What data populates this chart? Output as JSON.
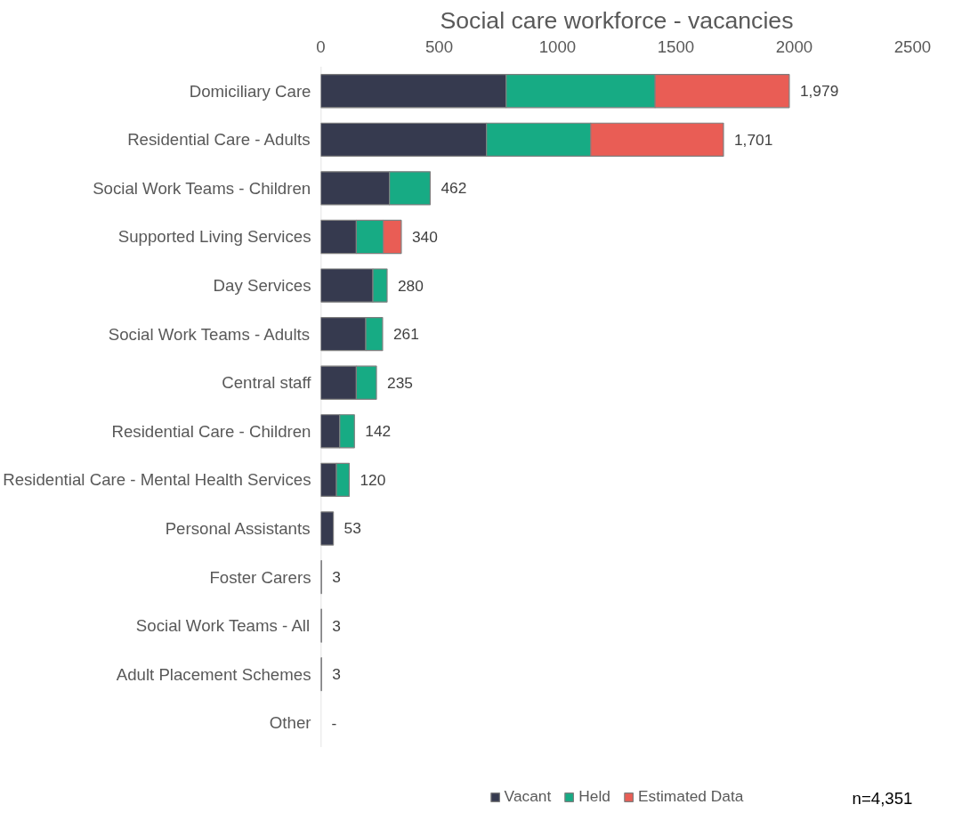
{
  "chart_data": {
    "type": "bar",
    "orientation": "horizontal",
    "stacked": true,
    "title": "Social care workforce - vacancies",
    "categories": [
      "Domiciliary Care",
      "Residential Care - Adults",
      "Social Work Teams - Children",
      "Supported Living Services",
      "Day Services",
      "Social Work Teams - Adults",
      "Central staff",
      "Residential Care - Children",
      "Residential Care - Mental Health Services",
      "Personal Assistants",
      "Foster Carers",
      "Social Work Teams - All",
      "Adult Placement Schemes",
      "Other"
    ],
    "series": [
      {
        "name": "Vacant",
        "color": "#363a4f",
        "values": [
          783,
          700,
          290,
          150,
          220,
          190,
          150,
          80,
          66,
          53,
          3,
          3,
          3,
          0
        ]
      },
      {
        "name": "Held",
        "color": "#17ab84",
        "values": [
          629,
          440,
          172,
          114,
          60,
          71,
          85,
          62,
          54,
          0,
          0,
          0,
          0,
          0
        ]
      },
      {
        "name": "Estimated Data",
        "color": "#e95d55",
        "values": [
          567,
          561,
          0,
          76,
          0,
          0,
          0,
          0,
          0,
          0,
          0,
          0,
          0,
          0
        ]
      }
    ],
    "totals": [
      "1,979",
      "1,701",
      "462",
      "340",
      "280",
      "261",
      "235",
      "142",
      "120",
      "53",
      "3",
      "3",
      "3",
      "-"
    ],
    "xlim": [
      0,
      2500
    ],
    "xticks": [
      0,
      500,
      1000,
      1500,
      2000,
      2500
    ],
    "grid": false,
    "legend": "bottom",
    "annotations": [
      "n=4,351"
    ]
  }
}
